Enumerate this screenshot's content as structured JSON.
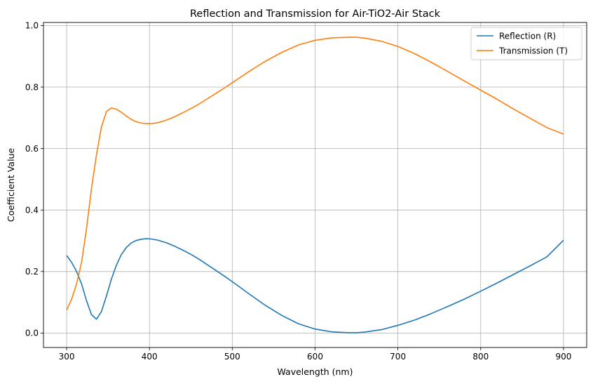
{
  "chart_data": {
    "type": "line",
    "title": "Reflection and Transmission for Air-TiO2-Air Stack",
    "xlabel": "Wavelength (nm)",
    "ylabel": "Coefficient Value",
    "xlim": [
      272,
      928
    ],
    "ylim": [
      -0.047,
      1.01
    ],
    "xticks": [
      300,
      400,
      500,
      600,
      700,
      800,
      900
    ],
    "yticks": [
      0.0,
      0.2,
      0.4,
      0.6,
      0.8,
      1.0
    ],
    "xtick_labels": [
      "300",
      "400",
      "500",
      "600",
      "700",
      "800",
      "900"
    ],
    "ytick_labels": [
      "0.0",
      "0.2",
      "0.4",
      "0.6",
      "0.8",
      "1.0"
    ],
    "grid": true,
    "legend_position": "top-right",
    "series": [
      {
        "name": "Reflection (R)",
        "color": "#1f77b4",
        "x": [
          300,
          306,
          312,
          318,
          324,
          330,
          336,
          342,
          348,
          354,
          360,
          366,
          372,
          378,
          384,
          390,
          396,
          402,
          410,
          420,
          430,
          440,
          450,
          460,
          470,
          480,
          490,
          500,
          520,
          540,
          560,
          580,
          600,
          620,
          640,
          650,
          660,
          680,
          700,
          720,
          740,
          760,
          780,
          800,
          820,
          840,
          860,
          880,
          900
        ],
        "values": [
          0.252,
          0.23,
          0.2,
          0.16,
          0.105,
          0.06,
          0.045,
          0.07,
          0.12,
          0.175,
          0.22,
          0.255,
          0.278,
          0.293,
          0.301,
          0.305,
          0.307,
          0.306,
          0.302,
          0.294,
          0.283,
          0.27,
          0.256,
          0.24,
          0.222,
          0.204,
          0.186,
          0.167,
          0.128,
          0.09,
          0.057,
          0.03,
          0.013,
          0.004,
          0.001,
          0.001,
          0.003,
          0.011,
          0.025,
          0.042,
          0.063,
          0.086,
          0.11,
          0.136,
          0.163,
          0.191,
          0.219,
          0.248,
          0.302
        ]
      },
      {
        "name": "Transmission (T)",
        "color": "#ff7f0e",
        "x": [
          300,
          306,
          312,
          318,
          324,
          330,
          336,
          342,
          348,
          354,
          360,
          366,
          372,
          378,
          384,
          390,
          396,
          402,
          410,
          420,
          430,
          440,
          450,
          460,
          470,
          480,
          490,
          500,
          520,
          540,
          560,
          580,
          600,
          620,
          640,
          650,
          660,
          680,
          700,
          720,
          740,
          760,
          780,
          800,
          820,
          840,
          860,
          880,
          900
        ],
        "values": [
          0.075,
          0.11,
          0.16,
          0.23,
          0.34,
          0.47,
          0.58,
          0.67,
          0.72,
          0.732,
          0.728,
          0.718,
          0.706,
          0.695,
          0.687,
          0.683,
          0.681,
          0.681,
          0.684,
          0.692,
          0.703,
          0.716,
          0.73,
          0.745,
          0.762,
          0.779,
          0.796,
          0.814,
          0.85,
          0.884,
          0.913,
          0.937,
          0.952,
          0.96,
          0.962,
          0.962,
          0.959,
          0.949,
          0.932,
          0.909,
          0.881,
          0.851,
          0.82,
          0.79,
          0.76,
          0.728,
          0.698,
          0.668,
          0.647
        ]
      }
    ]
  }
}
